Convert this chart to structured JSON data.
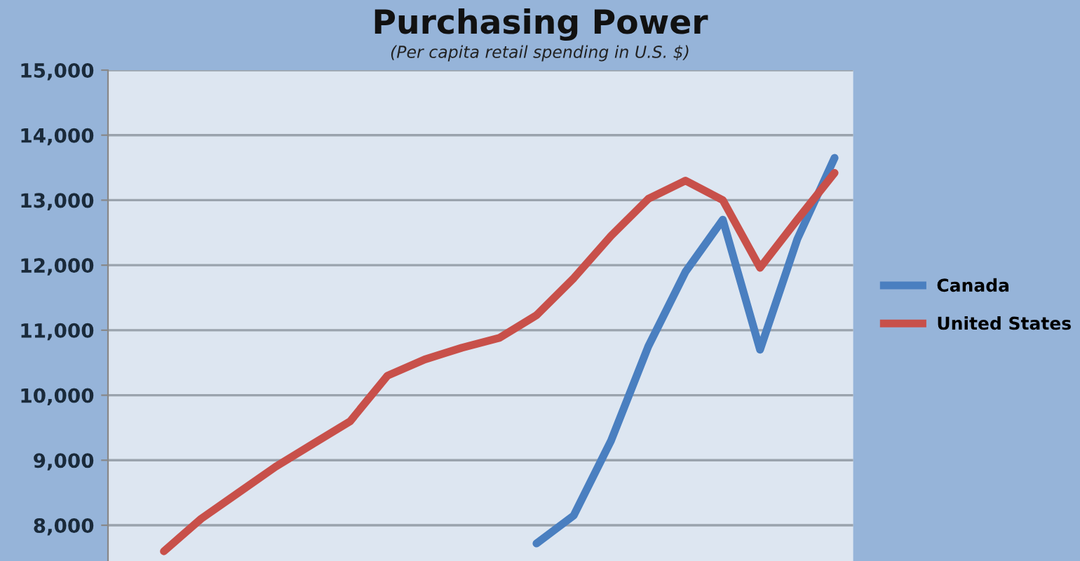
{
  "chart_data": {
    "type": "line",
    "title": "Purchasing Power",
    "subtitle": "(Per capita retail spending in U.S. $)",
    "categories": [
      null,
      null,
      null,
      null,
      null,
      null,
      null,
      null,
      null,
      null,
      null,
      null,
      null,
      null,
      null,
      null,
      null,
      null,
      null,
      null
    ],
    "series": [
      {
        "name": "Canada",
        "color": "#4a7fc0",
        "values": [
          null,
          null,
          null,
          null,
          null,
          null,
          null,
          null,
          null,
          null,
          null,
          7720,
          8150,
          9300,
          10750,
          11900,
          12700,
          10700,
          12400,
          13650
        ]
      },
      {
        "name": "United States",
        "color": "#c8504a",
        "values": [
          null,
          7600,
          8100,
          8500,
          8900,
          9250,
          9600,
          10300,
          10550,
          10730,
          10880,
          11230,
          11800,
          12450,
          13020,
          13300,
          13000,
          11960,
          12700,
          13420
        ]
      }
    ],
    "ylim": [
      7450,
      15000
    ],
    "yticks": [
      {
        "value": 8000,
        "label": "8,000"
      },
      {
        "value": 9000,
        "label": "9,000"
      },
      {
        "value": 10000,
        "label": "10,000"
      },
      {
        "value": 11000,
        "label": "11,000"
      },
      {
        "value": 12000,
        "label": "12,000"
      },
      {
        "value": 13000,
        "label": "13,000"
      },
      {
        "value": 14000,
        "label": "14,000"
      },
      {
        "value": 15000,
        "label": "15,000"
      }
    ],
    "grid": "y",
    "legend": "right",
    "tick_labels": "y",
    "marker": "none",
    "line_style": "solid"
  }
}
